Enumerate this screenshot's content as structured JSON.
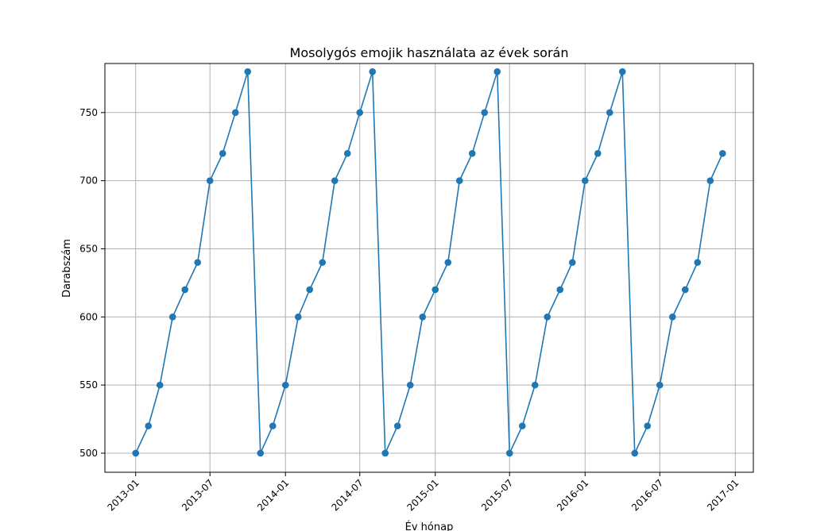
{
  "chart_data": {
    "type": "line",
    "title": "Mosolygós emojik használata az évek során",
    "xlabel": "Év hónap",
    "ylabel": "Darabszám",
    "x": [
      "2013-01",
      "2013-02",
      "2013-03",
      "2013-04",
      "2013-05",
      "2013-06",
      "2013-07",
      "2013-08",
      "2013-09",
      "2013-10",
      "2013-11",
      "2013-12",
      "2014-01",
      "2014-02",
      "2014-03",
      "2014-04",
      "2014-05",
      "2014-06",
      "2014-07",
      "2014-08",
      "2014-09",
      "2014-10",
      "2014-11",
      "2014-12",
      "2015-01",
      "2015-02",
      "2015-03",
      "2015-04",
      "2015-05",
      "2015-06",
      "2015-07",
      "2015-08",
      "2015-09",
      "2015-10",
      "2015-11",
      "2015-12",
      "2016-01",
      "2016-02",
      "2016-03",
      "2016-04",
      "2016-05",
      "2016-06",
      "2016-07",
      "2016-08",
      "2016-09",
      "2016-10",
      "2016-11",
      "2016-12"
    ],
    "series": [
      {
        "values": [
          500,
          520,
          550,
          600,
          620,
          640,
          700,
          720,
          750,
          780,
          500,
          520,
          550,
          600,
          620,
          640,
          700,
          720,
          750,
          780,
          500,
          520,
          550,
          600,
          620,
          640,
          700,
          720,
          750,
          780,
          500,
          520,
          550,
          600,
          620,
          640,
          700,
          720,
          750,
          780,
          500,
          520,
          550,
          600,
          620,
          640,
          700,
          720
        ],
        "color": "#1f77b4",
        "marker": "circle"
      }
    ],
    "x_ticks": [
      "2013-01",
      "2013-07",
      "2014-01",
      "2014-07",
      "2015-01",
      "2015-07",
      "2016-01",
      "2016-07",
      "2017-01"
    ],
    "y_ticks": [
      500,
      550,
      600,
      650,
      700,
      750
    ],
    "xlim": [
      "2012-10-18",
      "2017-02-14"
    ],
    "ylim": [
      486,
      786
    ],
    "grid": true,
    "legend": false
  }
}
